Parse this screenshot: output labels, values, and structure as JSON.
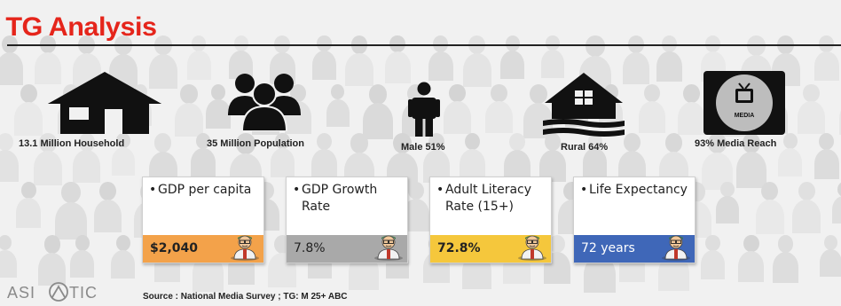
{
  "title": "TG Analysis",
  "stats": [
    {
      "icon": "house-icon",
      "label": "13.1 Million Household"
    },
    {
      "icon": "population-icon",
      "label": "35 Million Population"
    },
    {
      "icon": "male-icon",
      "label": "Male 51%"
    },
    {
      "icon": "rural-house-icon",
      "label": "Rural 64%"
    },
    {
      "icon": "media-tv-icon",
      "label": "93% Media Reach",
      "badge": "MEDIA"
    }
  ],
  "cards": [
    {
      "bullet": "•",
      "label": "GDP per capita",
      "value": "$2,040",
      "bar_color": "#f3a24a",
      "value_color": "#222222",
      "value_bold": true
    },
    {
      "bullet": "•",
      "label": "GDP Growth Rate",
      "value": "7.8%",
      "bar_color": "#a9a9a9",
      "value_color": "#222222",
      "value_bold": false
    },
    {
      "bullet": "•",
      "label": "Adult Literacy Rate (15+)",
      "value": "72.8%",
      "bar_color": "#f5c73c",
      "value_color": "#222222",
      "value_bold": true
    },
    {
      "bullet": "•",
      "label": "Life Expectancy",
      "value": "72 years",
      "bar_color": "#3f67b8",
      "value_color": "#ffffff",
      "value_bold": false
    }
  ],
  "footer": {
    "logo_left": "ASI",
    "logo_right": "TIC",
    "source": "Source : National Media Survey ; TG: M 25+ ABC"
  },
  "colors": {
    "title": "#e5251b",
    "icon": "#111111"
  }
}
